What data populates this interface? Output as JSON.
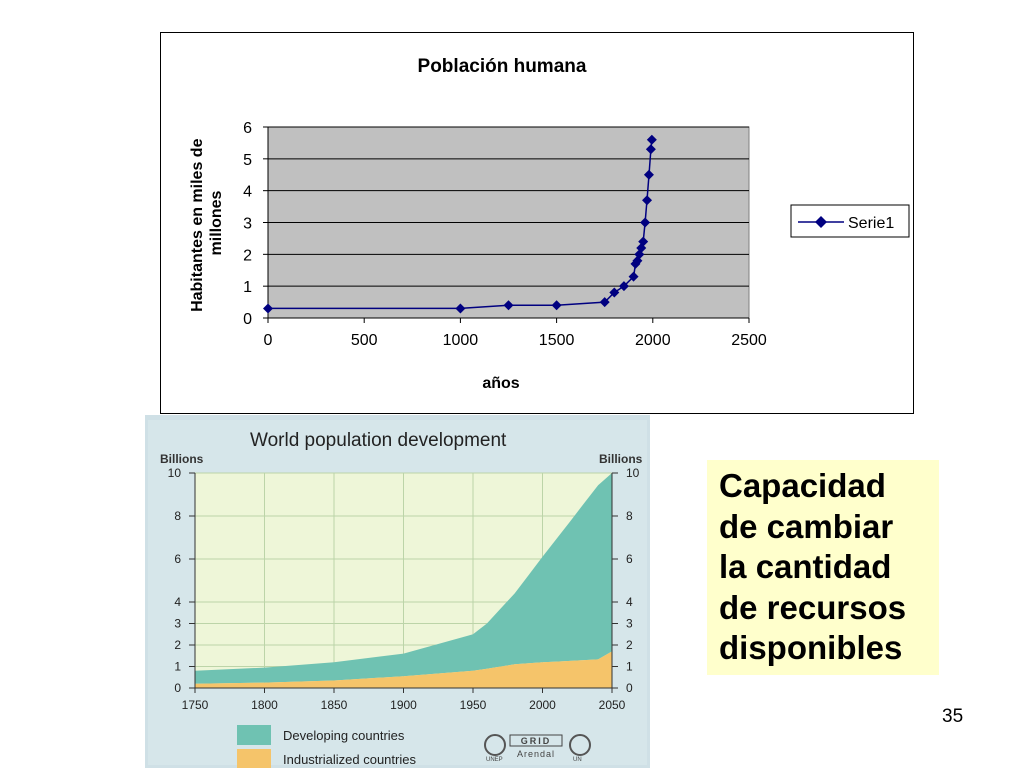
{
  "chart_data": [
    {
      "type": "line",
      "title": "Población humana",
      "xlabel": "años",
      "ylabel": "Habitantes en miles de millones",
      "xlim": [
        0,
        2500
      ],
      "ylim": [
        0,
        6
      ],
      "x_ticks": [
        "0",
        "500",
        "1000",
        "1500",
        "2000",
        "2500"
      ],
      "y_ticks": [
        "0",
        "1",
        "2",
        "3",
        "4",
        "5",
        "6"
      ],
      "legend_position": "right",
      "plot_background": "#c0c0c0",
      "series": [
        {
          "name": "Serie1",
          "color": "#000080",
          "x": [
            0,
            1000,
            1250,
            1500,
            1750,
            1800,
            1850,
            1900,
            1910,
            1920,
            1930,
            1940,
            1950,
            1960,
            1970,
            1980,
            1990,
            1995
          ],
          "y": [
            0.3,
            0.3,
            0.4,
            0.4,
            0.5,
            0.8,
            1.0,
            1.3,
            1.7,
            1.8,
            2.0,
            2.2,
            2.4,
            3.0,
            3.7,
            4.5,
            5.3,
            5.6
          ]
        }
      ]
    },
    {
      "type": "area",
      "title": "World population development",
      "ylabel_left": "Billions",
      "ylabel_right": "Billions",
      "xlim": [
        1750,
        2050
      ],
      "ylim": [
        0,
        10
      ],
      "x_ticks": [
        "1750",
        "1800",
        "1850",
        "1900",
        "1950",
        "2000",
        "2050"
      ],
      "y_ticks_left": [
        "0",
        "1",
        "2",
        "3",
        "4",
        "6",
        "8",
        "10"
      ],
      "y_ticks_right": [
        "0",
        "1",
        "2",
        "3",
        "4",
        "6",
        "8",
        "10"
      ],
      "stacked": true,
      "x": [
        1750,
        1800,
        1850,
        1900,
        1950,
        1960,
        1970,
        1980,
        1990,
        2000,
        2010,
        2020,
        2030,
        2040,
        2050
      ],
      "series": [
        {
          "name": "Industrialized countries",
          "color": "#f5c46a",
          "values": [
            0.2,
            0.25,
            0.35,
            0.55,
            0.8,
            0.9,
            1.0,
            1.1,
            1.15,
            1.2,
            1.23,
            1.26,
            1.3,
            1.33,
            1.7
          ]
        },
        {
          "name": "Developing countries",
          "color": "#6fc2b2",
          "values": [
            0.6,
            0.7,
            0.85,
            1.05,
            1.7,
            2.1,
            2.7,
            3.3,
            4.1,
            4.9,
            5.7,
            6.5,
            7.3,
            8.1,
            8.3
          ]
        }
      ]
    }
  ],
  "textbox": {
    "lines": [
      "Capacidad",
      "de cambiar",
      "la cantidad",
      "de recursos",
      "disponibles"
    ]
  },
  "page_number": "35",
  "logos": [
    "UNEP",
    "GRID",
    "Arendal",
    "UN"
  ]
}
